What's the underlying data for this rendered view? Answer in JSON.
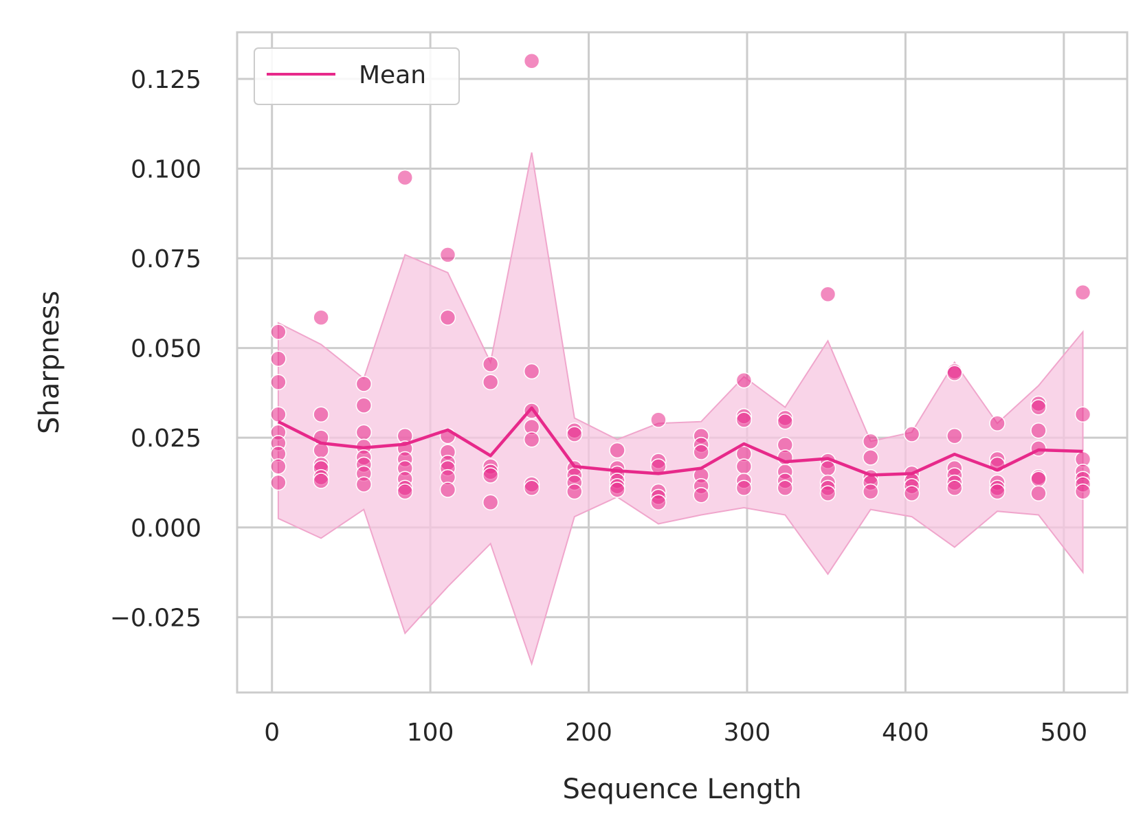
{
  "chart_data": {
    "type": "line",
    "xlabel": "Sequence Length",
    "ylabel": "Sharpness",
    "xlim": [
      -22,
      540
    ],
    "ylim": [
      -0.046,
      0.138
    ],
    "xticks": [
      0,
      100,
      200,
      300,
      400,
      500
    ],
    "xtick_labels": [
      "0",
      "100",
      "200",
      "300",
      "400",
      "500"
    ],
    "yticks": [
      -0.025,
      0.0,
      0.025,
      0.05,
      0.075,
      0.1,
      0.125
    ],
    "ytick_labels": [
      "−0.025",
      "0.000",
      "0.025",
      "0.050",
      "0.075",
      "0.100",
      "0.125"
    ],
    "grid": true,
    "legend": {
      "position": "top-left",
      "entries": [
        "Mean"
      ]
    },
    "colors": {
      "line": "#e7298a",
      "band": "#f7c6e0",
      "points": "#e7298a",
      "grid": "#cccccc"
    },
    "series": [
      {
        "name": "Mean",
        "x": [
          4,
          31,
          58,
          84,
          111,
          138,
          164,
          191,
          218,
          244,
          271,
          298,
          324,
          351,
          378,
          404,
          431,
          458,
          484,
          512
        ],
        "mean": [
          0.0295,
          0.0235,
          0.0222,
          0.0232,
          0.0272,
          0.02,
          0.0333,
          0.017,
          0.0158,
          0.015,
          0.0165,
          0.0233,
          0.0183,
          0.0192,
          0.0146,
          0.015,
          0.0204,
          0.016,
          0.0216,
          0.0212
        ],
        "band_upper": [
          0.057,
          0.051,
          0.0415,
          0.076,
          0.071,
          0.046,
          0.1045,
          0.0305,
          0.0245,
          0.029,
          0.0295,
          0.042,
          0.0335,
          0.052,
          0.024,
          0.0265,
          0.046,
          0.029,
          0.0395,
          0.0545
        ],
        "band_lower": [
          0.0025,
          -0.003,
          0.005,
          -0.0295,
          -0.0165,
          -0.0045,
          -0.038,
          0.003,
          0.0085,
          0.001,
          0.0035,
          0.0055,
          0.0035,
          -0.013,
          0.005,
          0.003,
          -0.0055,
          0.0045,
          0.0035,
          -0.0125
        ]
      }
    ],
    "points": [
      {
        "x": 4,
        "y": [
          0.0545,
          0.047,
          0.0405,
          0.0315,
          0.0265,
          0.0235,
          0.0205,
          0.017,
          0.0125
        ]
      },
      {
        "x": 31,
        "y": [
          0.0585,
          0.0315,
          0.025,
          0.0215,
          0.0175,
          0.0165,
          0.014,
          0.013
        ]
      },
      {
        "x": 58,
        "y": [
          0.04,
          0.034,
          0.0265,
          0.0225,
          0.0195,
          0.0175,
          0.015,
          0.012
        ]
      },
      {
        "x": 84,
        "y": [
          0.0975,
          0.0255,
          0.022,
          0.019,
          0.0165,
          0.0135,
          0.011,
          0.01
        ]
      },
      {
        "x": 111,
        "y": [
          0.076,
          0.0585,
          0.0255,
          0.021,
          0.018,
          0.0165,
          0.014,
          0.0105
        ]
      },
      {
        "x": 138,
        "y": [
          0.0455,
          0.0405,
          0.017,
          0.0155,
          0.0145,
          0.007
        ]
      },
      {
        "x": 164,
        "y": [
          0.13,
          0.0435,
          0.0325,
          0.028,
          0.0245,
          0.012,
          0.011
        ]
      },
      {
        "x": 191,
        "y": [
          0.027,
          0.026,
          0.0165,
          0.0145,
          0.0125,
          0.01
        ]
      },
      {
        "x": 218,
        "y": [
          0.0215,
          0.0165,
          0.015,
          0.013,
          0.0115,
          0.0105
        ]
      },
      {
        "x": 244,
        "y": [
          0.03,
          0.0185,
          0.017,
          0.01,
          0.0085,
          0.007
        ]
      },
      {
        "x": 271,
        "y": [
          0.0255,
          0.023,
          0.021,
          0.0145,
          0.0115,
          0.009
        ]
      },
      {
        "x": 298,
        "y": [
          0.041,
          0.031,
          0.03,
          0.0205,
          0.017,
          0.013,
          0.011
        ]
      },
      {
        "x": 324,
        "y": [
          0.0305,
          0.0295,
          0.023,
          0.0195,
          0.0155,
          0.013,
          0.011
        ]
      },
      {
        "x": 351,
        "y": [
          0.065,
          0.0185,
          0.0165,
          0.0125,
          0.011,
          0.0095
        ]
      },
      {
        "x": 378,
        "y": [
          0.024,
          0.0195,
          0.014,
          0.0125,
          0.01
        ]
      },
      {
        "x": 404,
        "y": [
          0.026,
          0.015,
          0.013,
          0.0115,
          0.0095
        ]
      },
      {
        "x": 431,
        "y": [
          0.0435,
          0.043,
          0.0255,
          0.0165,
          0.0145,
          0.0125,
          0.011
        ]
      },
      {
        "x": 458,
        "y": [
          0.029,
          0.019,
          0.0175,
          0.0125,
          0.011,
          0.01
        ]
      },
      {
        "x": 484,
        "y": [
          0.0345,
          0.0335,
          0.027,
          0.022,
          0.014,
          0.0135,
          0.0095
        ]
      },
      {
        "x": 512,
        "y": [
          0.0655,
          0.0315,
          0.019,
          0.0155,
          0.0135,
          0.012,
          0.01
        ]
      }
    ]
  }
}
